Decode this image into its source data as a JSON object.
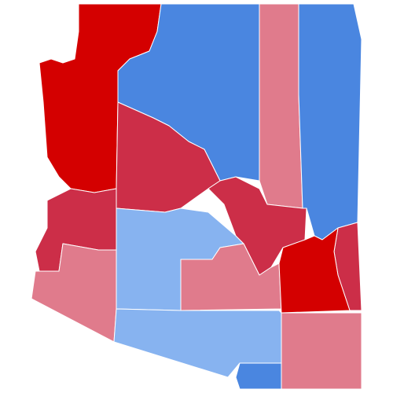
{
  "regions": [
    {
      "color": "#d40000"
    },
    {
      "color": "#4a86e0"
    },
    {
      "color": "#e07b8c"
    },
    {
      "color": "#4a86e0"
    },
    {
      "color": "#cc2e48"
    },
    {
      "color": "#cc2e48"
    },
    {
      "color": "#87b3f0"
    },
    {
      "color": "#cc2e48"
    },
    {
      "color": "#e07b8c"
    },
    {
      "color": "#e07b8c"
    },
    {
      "color": "#cc2e48"
    },
    {
      "color": "#d40000"
    },
    {
      "color": "#87b3f0"
    },
    {
      "color": "#4a86e0"
    },
    {
      "color": "#e07b8c"
    }
  ]
}
